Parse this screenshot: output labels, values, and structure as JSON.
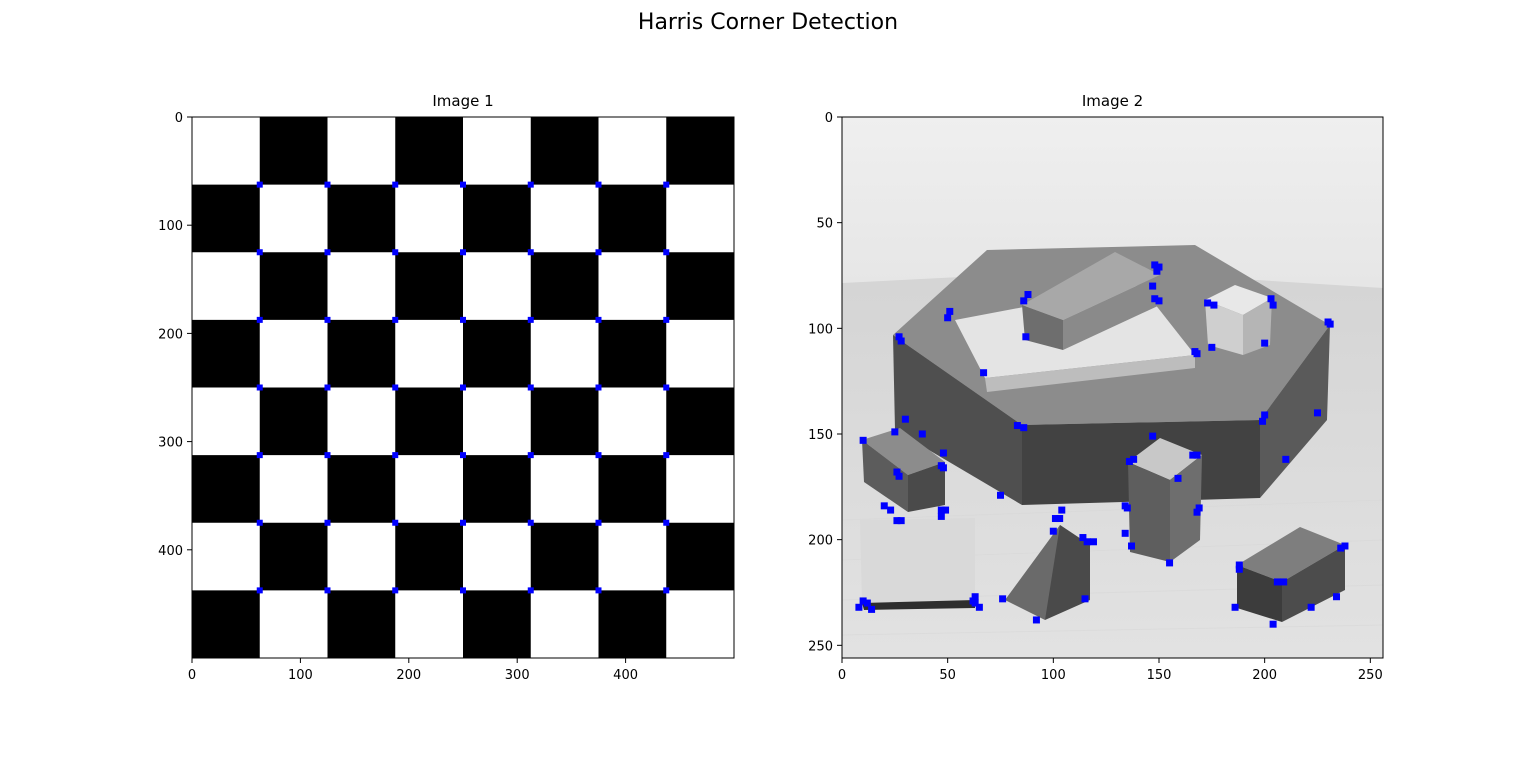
{
  "figure": {
    "title": "Harris Corner Detection"
  },
  "chart_data": [
    {
      "type": "image",
      "title": "Image 1",
      "content": "checkerboard",
      "rows": 8,
      "cols": 8,
      "xlim": [
        0,
        500
      ],
      "ylim": [
        500,
        0
      ],
      "xticks": [
        0,
        100,
        200,
        300,
        400
      ],
      "yticks": [
        0,
        100,
        200,
        300,
        400
      ],
      "square_size": 62.5,
      "corners": {
        "color": "#0000ff",
        "x": [
          62.5,
          125,
          187.5,
          250,
          312.5,
          375,
          437.5
        ],
        "y": [
          62.5,
          125,
          187.5,
          250,
          312.5,
          375,
          437.5
        ]
      }
    },
    {
      "type": "image",
      "title": "Image 2",
      "content": "grayscale photo of blocks",
      "xlim": [
        0,
        256
      ],
      "ylim": [
        256,
        0
      ],
      "xticks": [
        0,
        50,
        100,
        150,
        200,
        250
      ],
      "yticks": [
        0,
        50,
        100,
        150,
        200,
        250
      ],
      "corners": {
        "color": "#0000ff",
        "points": [
          [
            88,
            84
          ],
          [
            86,
            87
          ],
          [
            87,
            104
          ],
          [
            148,
            70
          ],
          [
            150,
            71
          ],
          [
            149,
            73
          ],
          [
            147,
            80
          ],
          [
            148,
            86
          ],
          [
            150,
            87
          ],
          [
            173,
            88
          ],
          [
            176,
            89
          ],
          [
            203,
            86
          ],
          [
            204,
            89
          ],
          [
            230,
            97
          ],
          [
            231,
            98
          ],
          [
            200,
            107
          ],
          [
            175,
            109
          ],
          [
            51,
            92
          ],
          [
            50,
            95
          ],
          [
            27,
            104
          ],
          [
            28,
            106
          ],
          [
            67,
            121
          ],
          [
            167,
            111
          ],
          [
            168,
            112
          ],
          [
            83,
            146
          ],
          [
            86,
            147
          ],
          [
            200,
            141
          ],
          [
            199,
            144
          ],
          [
            225,
            140
          ],
          [
            10,
            153
          ],
          [
            25,
            149
          ],
          [
            38,
            150
          ],
          [
            48,
            159
          ],
          [
            30,
            143
          ],
          [
            147,
            151
          ],
          [
            138,
            162
          ],
          [
            136,
            163
          ],
          [
            166,
            160
          ],
          [
            168,
            160
          ],
          [
            159,
            171
          ],
          [
            210,
            162
          ],
          [
            26,
            168
          ],
          [
            27,
            170
          ],
          [
            47,
            165
          ],
          [
            48,
            166
          ],
          [
            75,
            179
          ],
          [
            20,
            184
          ],
          [
            23,
            186
          ],
          [
            26,
            191
          ],
          [
            28,
            191
          ],
          [
            47,
            186
          ],
          [
            49,
            186
          ],
          [
            47,
            189
          ],
          [
            101,
            190
          ],
          [
            103,
            190
          ],
          [
            104,
            186
          ],
          [
            100,
            196
          ],
          [
            114,
            199
          ],
          [
            116,
            201
          ],
          [
            119,
            201
          ],
          [
            134,
            184
          ],
          [
            135,
            185
          ],
          [
            134,
            197
          ],
          [
            137,
            203
          ],
          [
            155,
            211
          ],
          [
            168,
            187
          ],
          [
            169,
            185
          ],
          [
            188,
            212
          ],
          [
            188,
            214
          ],
          [
            206,
            220
          ],
          [
            209,
            220
          ],
          [
            238,
            203
          ],
          [
            236,
            204
          ],
          [
            10,
            229
          ],
          [
            12,
            230
          ],
          [
            14,
            233
          ],
          [
            8,
            232
          ],
          [
            62,
            229
          ],
          [
            63,
            230
          ],
          [
            65,
            232
          ],
          [
            63,
            227
          ],
          [
            76,
            228
          ],
          [
            92,
            238
          ],
          [
            115,
            228
          ],
          [
            186,
            232
          ],
          [
            204,
            240
          ],
          [
            222,
            232
          ],
          [
            234,
            227
          ]
        ]
      }
    }
  ]
}
